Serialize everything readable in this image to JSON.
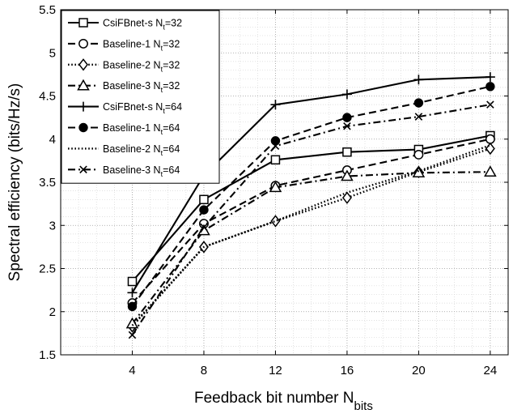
{
  "chart_data": {
    "type": "line",
    "xlabel": "Feedback bit number N",
    "xlabel_sub": "bits",
    "ylabel": "Spectral efficiency (bits/Hz/s)",
    "x": [
      4,
      8,
      12,
      16,
      20,
      24
    ],
    "xlim": [
      0,
      25
    ],
    "ylim": [
      1.5,
      5.5
    ],
    "x_ticks": [
      "4",
      "8",
      "12",
      "16",
      "20",
      "24"
    ],
    "y_ticks": [
      "1.5",
      "2",
      "2.5",
      "3",
      "3.5",
      "4",
      "4.5",
      "5",
      "5.5"
    ],
    "grid": true,
    "minor_grid": true,
    "legend_position": "top-left",
    "series": [
      {
        "name": "CsiFBnet-s N",
        "sub": "t",
        "suffix": "=32",
        "style": "solid",
        "marker": "square",
        "values": [
          2.35,
          3.3,
          3.76,
          3.85,
          3.88,
          4.04
        ]
      },
      {
        "name": "Baseline-1 N",
        "sub": "t",
        "suffix": "=32",
        "style": "dashed",
        "marker": "circle",
        "values": [
          2.1,
          3.02,
          3.46,
          3.64,
          3.82,
          4.0
        ]
      },
      {
        "name": "Baseline-2 N",
        "sub": "t",
        "suffix": "=32",
        "style": "dotted",
        "marker": "diamond",
        "values": [
          1.83,
          2.75,
          3.05,
          3.32,
          3.62,
          3.89
        ]
      },
      {
        "name": "Baseline-3 N",
        "sub": "t",
        "suffix": "=32",
        "style": "dashdot",
        "marker": "triangle",
        "values": [
          1.86,
          2.94,
          3.44,
          3.57,
          3.61,
          3.62
        ]
      },
      {
        "name": "CsiFBnet-s N",
        "sub": "t",
        "suffix": "=64",
        "style": "solid",
        "marker": "plus",
        "values": [
          2.22,
          3.58,
          4.4,
          4.52,
          4.69,
          4.72
        ]
      },
      {
        "name": "Baseline-1 N",
        "sub": "t",
        "suffix": "=64",
        "style": "dashed",
        "marker": "dot",
        "values": [
          2.06,
          3.18,
          3.98,
          4.25,
          4.42,
          4.61
        ]
      },
      {
        "name": "Baseline-2 N",
        "sub": "t",
        "suffix": "=64",
        "style": "dotted",
        "marker": "none",
        "values": [
          1.84,
          2.75,
          3.05,
          3.38,
          3.63,
          3.93
        ]
      },
      {
        "name": "Baseline-3 N",
        "sub": "t",
        "suffix": "=64",
        "style": "dashdot",
        "marker": "x",
        "values": [
          1.73,
          2.98,
          3.92,
          4.15,
          4.26,
          4.4
        ]
      }
    ]
  }
}
